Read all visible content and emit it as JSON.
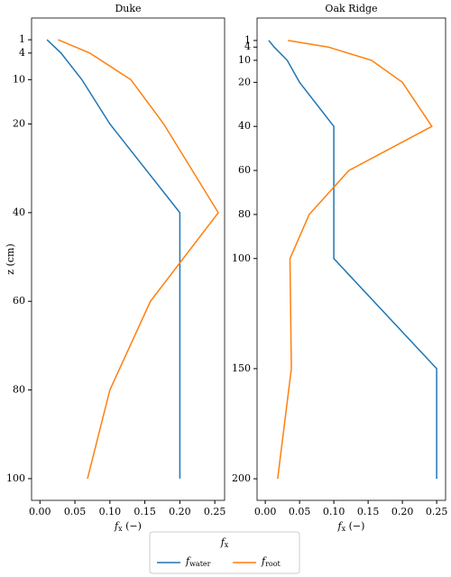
{
  "chart_data": [
    {
      "type": "line",
      "title": "Duke",
      "ylabel": "z (cm)",
      "xlabel": "f_x (−)",
      "y": [
        1,
        4,
        10,
        20,
        40,
        60,
        80,
        100
      ],
      "series": [
        {
          "name": "f_water",
          "color": "#1f77b4",
          "values": [
            0.01,
            0.03,
            0.06,
            0.1,
            0.2,
            0.2,
            0.2,
            0.2
          ]
        },
        {
          "name": "f_root",
          "color": "#ff7f0e",
          "values": [
            0.026,
            0.071,
            0.13,
            0.177,
            0.255,
            0.158,
            0.1,
            0.068
          ]
        }
      ],
      "xlim": [
        -0.012,
        0.264
      ],
      "ylim": [
        104.9,
        -3.9
      ],
      "xticks": [
        {
          "value": 0,
          "label": "0.00"
        },
        {
          "value": 0.05,
          "label": "0.05"
        },
        {
          "value": 0.1,
          "label": "0.10"
        },
        {
          "value": 0.15,
          "label": "0.15"
        },
        {
          "value": 0.2,
          "label": "0.20"
        },
        {
          "value": 0.25,
          "label": "0.25"
        }
      ],
      "yticks": [
        1,
        4,
        10,
        20,
        40,
        60,
        80,
        100
      ]
    },
    {
      "type": "line",
      "title": "Oak Ridge",
      "xlabel": "f_x (−)",
      "y": [
        1,
        4,
        10,
        20,
        40,
        60,
        80,
        100,
        150,
        200
      ],
      "series": [
        {
          "color": "#1f77b4",
          "values": [
            0.005,
            0.013,
            0.032,
            0.05,
            0.1,
            0.1,
            0.1,
            0.1,
            0.25,
            0.25
          ]
        },
        {
          "color": "#ff7f0e",
          "values": [
            0.033,
            0.092,
            0.155,
            0.2,
            0.243,
            0.122,
            0.064,
            0.036,
            0.038,
            0.018
          ]
        }
      ],
      "xlim": [
        -0.012,
        0.263
      ],
      "ylim": [
        209.8,
        -9.2
      ],
      "xticks": [
        {
          "value": 0,
          "label": "0.00"
        },
        {
          "value": 0.05,
          "label": "0.05"
        },
        {
          "value": 0.1,
          "label": "0.10"
        },
        {
          "value": 0.15,
          "label": "0.15"
        },
        {
          "value": 0.2,
          "label": "0.20"
        },
        {
          "value": 0.25,
          "label": "0.25"
        }
      ],
      "yticks": [
        1,
        4,
        10,
        20,
        40,
        60,
        80,
        100,
        150,
        200
      ]
    }
  ],
  "legend": {
    "title": "f_x"
  }
}
